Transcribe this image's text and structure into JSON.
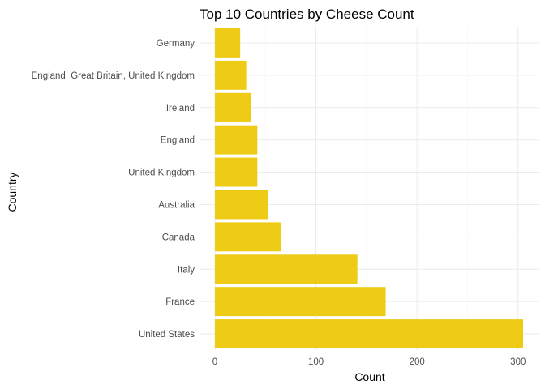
{
  "chart_data": {
    "type": "bar",
    "orientation": "horizontal",
    "title": "Top 10 Countries by Cheese Count",
    "xlabel": "Count",
    "ylabel": "Country",
    "categories": [
      "United States",
      "France",
      "Italy",
      "Canada",
      "Australia",
      "United Kingdom",
      "England",
      "Ireland",
      "England, Great Britain, United Kingdom",
      "Germany"
    ],
    "values": [
      305,
      169,
      141,
      65,
      53,
      42,
      42,
      36,
      31,
      25
    ],
    "xlim": [
      0,
      310
    ],
    "xticks": [
      0,
      100,
      200,
      300
    ],
    "grid": true,
    "bar_color": "#EECC16",
    "legend": "none"
  }
}
